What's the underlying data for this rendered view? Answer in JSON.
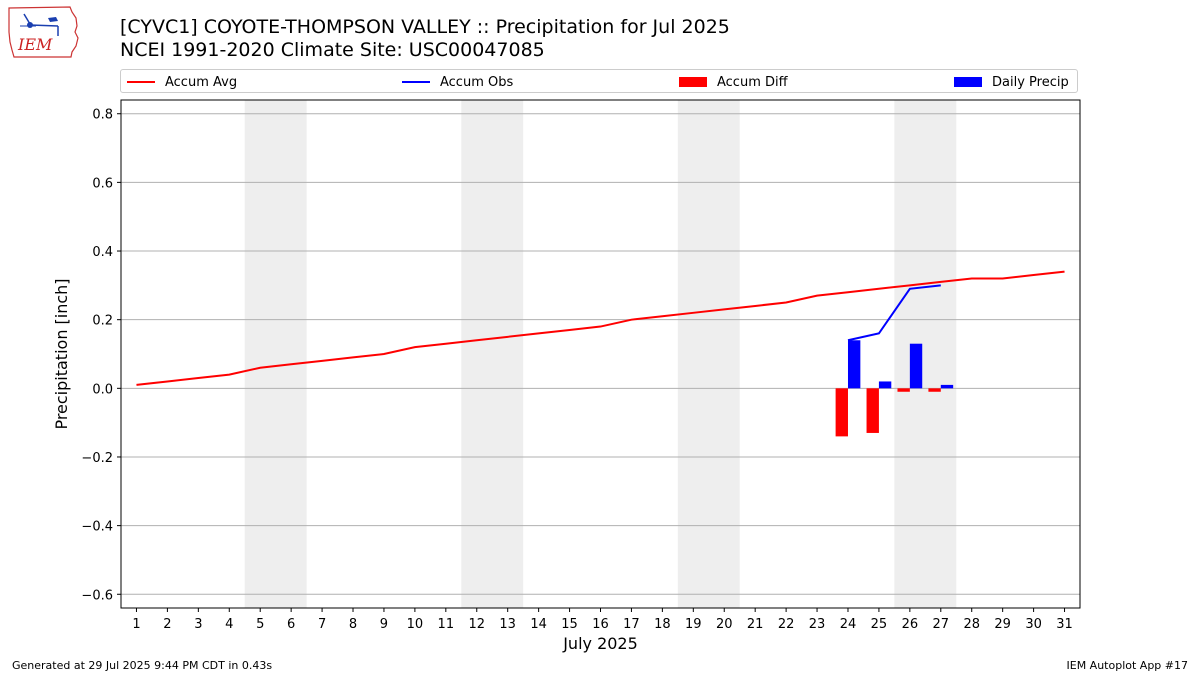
{
  "header": {
    "title_line1": "[CYVC1] COYOTE-THOMPSON VALLEY :: Precipitation for Jul 2025",
    "title_line2": "NCEI 1991-2020 Climate Site: USC00047085"
  },
  "logo": {
    "text": "IEM",
    "icon": "iem-iowa-logo-icon"
  },
  "footer": {
    "generated": "Generated at 29 Jul 2025 9:44 PM CDT in 0.43s",
    "app": "IEM Autoplot App #17"
  },
  "colors": {
    "accum_avg": "#ff0000",
    "accum_obs": "#0000ff",
    "accum_diff": "#ff0000",
    "daily_precip": "#0000ff",
    "weekend_band": "#eeeeee",
    "grid": "#b0b0b0"
  },
  "chart_data": {
    "type": "line",
    "xlabel": "July 2025",
    "ylabel": "Precipitation [inch]",
    "xlim": [
      0.5,
      31.5
    ],
    "ylim": [
      -0.64,
      0.84
    ],
    "grid": "horizontal",
    "legend_position": "top",
    "x_ticks": [
      1,
      2,
      3,
      4,
      5,
      6,
      7,
      8,
      9,
      10,
      11,
      12,
      13,
      14,
      15,
      16,
      17,
      18,
      19,
      20,
      21,
      22,
      23,
      24,
      25,
      26,
      27,
      28,
      29,
      30,
      31
    ],
    "y_ticks": [
      -0.6,
      -0.4,
      -0.2,
      0.0,
      0.2,
      0.4,
      0.6,
      0.8
    ],
    "y_tick_labels": [
      "−0.6",
      "−0.4",
      "−0.2",
      "0.0",
      "0.2",
      "0.4",
      "0.6",
      "0.8"
    ],
    "weekend_bands": [
      [
        4.5,
        6.5
      ],
      [
        11.5,
        13.5
      ],
      [
        18.5,
        20.5
      ],
      [
        25.5,
        27.5
      ]
    ],
    "series": [
      {
        "name": "Accum Avg",
        "kind": "line",
        "color": "#ff0000",
        "x": [
          1,
          2,
          3,
          4,
          5,
          6,
          7,
          8,
          9,
          10,
          11,
          12,
          13,
          14,
          15,
          16,
          17,
          18,
          19,
          20,
          21,
          22,
          23,
          24,
          25,
          26,
          27,
          28,
          29,
          30,
          31
        ],
        "values": [
          0.01,
          0.02,
          0.03,
          0.04,
          0.06,
          0.07,
          0.08,
          0.09,
          0.1,
          0.12,
          0.13,
          0.14,
          0.15,
          0.16,
          0.17,
          0.18,
          0.2,
          0.21,
          0.22,
          0.23,
          0.24,
          0.25,
          0.27,
          0.28,
          0.29,
          0.3,
          0.31,
          0.32,
          0.32,
          0.33,
          0.34
        ]
      },
      {
        "name": "Accum Obs",
        "kind": "line",
        "color": "#0000ff",
        "x": [
          24,
          25,
          26,
          27
        ],
        "values": [
          0.14,
          0.16,
          0.29,
          0.3
        ]
      },
      {
        "name": "Accum Diff",
        "kind": "bar",
        "color": "#ff0000",
        "x": [
          24,
          25,
          26,
          27
        ],
        "values": [
          -0.14,
          -0.13,
          -0.01,
          -0.01
        ]
      },
      {
        "name": "Daily Precip",
        "kind": "bar",
        "color": "#0000ff",
        "x": [
          24,
          25,
          26,
          27
        ],
        "values": [
          0.14,
          0.02,
          0.13,
          0.01
        ]
      }
    ]
  }
}
